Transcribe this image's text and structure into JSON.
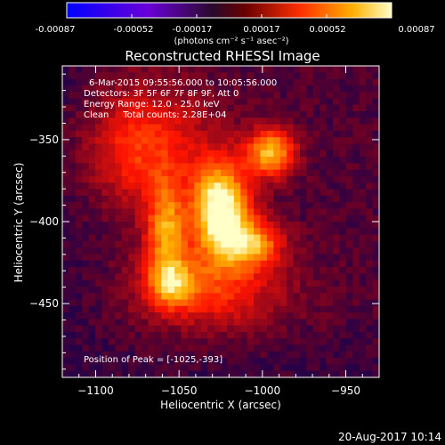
{
  "colorbar": {
    "min": -0.00087,
    "max": 0.00087,
    "tick_labels": [
      "-0.00087",
      "-0.00052",
      "-0.00017",
      "0.00017",
      "0.00052",
      "0.00087"
    ],
    "unit_label": "(photons cm⁻² s⁻¹ asec⁻²)"
  },
  "title": "Reconstructed RHESSI Image",
  "annotations": {
    "time_range": "6-Mar-2015 09:55:56.000 to 10:05:56.000",
    "detectors": "Detectors: 3F 5F 6F 7F 8F 9F, Att 0",
    "energy_range": "Energy Range: 12.0 - 25.0 keV",
    "clean_counts": "Clean     Total counts: 2.28E+04",
    "peak_position": "Position of Peak = [-1025,-393]"
  },
  "footer_timestamp": "20-Aug-2017 10:14",
  "chart_data": {
    "type": "heatmap",
    "title": "Reconstructed RHESSI Image",
    "xlabel": "Heliocentric X (arcsec)",
    "ylabel": "Heliocentric Y (arcsec)",
    "xlim": [
      -1120,
      -930
    ],
    "ylim": [
      -495,
      -305
    ],
    "xticks": [
      -1100,
      -1050,
      -1000,
      -950
    ],
    "yticks": [
      -350,
      -400,
      -450
    ],
    "peak": [
      -1025,
      -393
    ],
    "colorscale": "hot",
    "sources": [
      {
        "x": -1025,
        "y": -393,
        "sigma_x": 12,
        "sigma_y": 20,
        "amp": 1.0
      },
      {
        "x": -995,
        "y": -358,
        "sigma_x": 10,
        "sigma_y": 10,
        "amp": 0.75
      },
      {
        "x": -1058,
        "y": -405,
        "sigma_x": 8,
        "sigma_y": 20,
        "amp": 0.6
      },
      {
        "x": -1055,
        "y": -438,
        "sigma_x": 10,
        "sigma_y": 10,
        "amp": 0.5
      },
      {
        "x": -1005,
        "y": -413,
        "sigma_x": 12,
        "sigma_y": 10,
        "amp": 0.55
      },
      {
        "x": -1075,
        "y": -355,
        "sigma_x": 30,
        "sigma_y": 25,
        "amp": 0.45
      },
      {
        "x": -1030,
        "y": -440,
        "sigma_x": 30,
        "sigma_y": 20,
        "amp": 0.4
      }
    ]
  }
}
